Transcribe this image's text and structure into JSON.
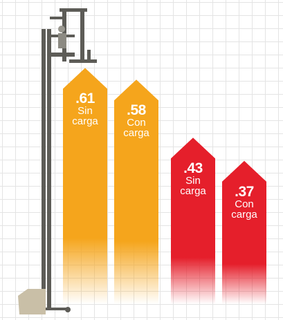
{
  "chart_data": {
    "type": "bar",
    "categories": [
      "Sin carga",
      "Con carga",
      "Sin carga",
      "Con carga"
    ],
    "values": [
      0.61,
      0.58,
      0.43,
      0.37
    ],
    "value_labels": [
      ".61",
      ".58",
      ".43",
      ".37"
    ],
    "colors": [
      "#f5a51c",
      "#f5a51c",
      "#e51f2b",
      "#e51f2b"
    ]
  }
}
